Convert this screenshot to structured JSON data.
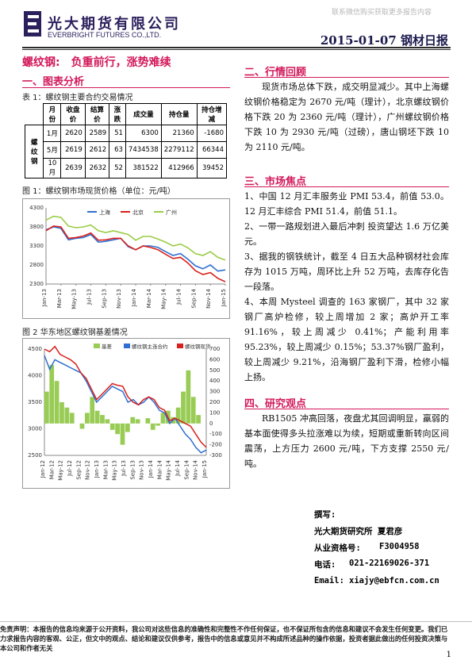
{
  "header": {
    "logo_cn": "光大期货有限公司",
    "logo_en": "EVERBRIGHT FUTURES CO.,LTD.",
    "watermark": "联系微信购买获取更多报告内容",
    "date_title": "2015-01-07 钢材日报"
  },
  "main_title": "螺纹钢:　负重前行，涨势难续",
  "section1": {
    "title": "一、图表分析",
    "table_caption": "表 1：螺纹钢主要合约交易情况",
    "table": {
      "headers": [
        "月份",
        "收盘价",
        "结算价",
        "涨跌",
        "成交量",
        "持仓量",
        "持仓增减"
      ],
      "row_label": "螺纹钢",
      "rows": [
        [
          "1月",
          "2620",
          "2589",
          "51",
          "6300",
          "21360",
          "-1680"
        ],
        [
          "5月",
          "2619",
          "2612",
          "63",
          "7434538",
          "2279112",
          "66344"
        ],
        [
          "10月",
          "2639",
          "2632",
          "52",
          "381522",
          "412966",
          "39452"
        ]
      ]
    },
    "fig1_caption": "图 1：螺纹钢市场现货价格（单位：元/吨）",
    "fig2_caption": "图 2  华东地区螺纹钢基差情况"
  },
  "section2": {
    "title": "二、行情回顾",
    "text": "现货市场总体下跌，成交明显减少。其中上海螺纹钢价格稳定为 2670 元/吨（理计），北京螺纹钢价格下跌 20 为 2360 元/吨（理计），广州螺纹钢价格下跌 10 为 2930 元/吨（过磅），唐山钢坯下跌 10 为 2110 元/吨。"
  },
  "section3": {
    "title": "三、市场焦点",
    "items": [
      "1、中国 12 月汇丰服务业 PMI 53.4，前值 53.0。12 月汇丰综合 PMI 51.4，前值 51.1。",
      "2、一带一路规划进入最后冲刺 投资望达 1.6 万亿美元。",
      "3、据我的钢铁统计，截至 4 日五大品种钢材社会库存为 1015 万吨，周环比上升 52 万吨，去库存化告一段落。",
      "4、本周 Mysteel 调查的 163 家钢厂，其中 32 家钢厂高炉检修，较上周增加 2 家；高炉开工率 91.16%，较上周减少 0.41%；产能利用率 95.23%，较上周减少 0.15%；53.37%钢厂盈利，较上周减少 9.21%，沿海钢厂盈利下滑，检修小幅上扬。"
    ]
  },
  "section4": {
    "title": "四、研究观点",
    "text": "RB1505 冲高回落，夜盘尤其回调明显，羸弱的基本面使得多头拉涨难以为续，短期或重新转向区间震荡，上方压力 2600 元/吨，下方支撑 2550 元/吨。"
  },
  "signature": {
    "label": "撰写:",
    "author": "光大期货研究所  夏君彦",
    "cert_label": "从业资格号:",
    "cert": "F3004958",
    "phone_label": "电话:",
    "phone": "021-22169026-371",
    "email_label": "Email:",
    "email": "xiajy@ebfcn.com.cn"
  },
  "disclaimer": "免责声明：本报告的信息均来源于公开资料，我公司对这些信息的准确性和完整性不作任何保证，也不保证所包含的信息和建议不会发生任何变更。我们已力求报告内容的客观、公正，但文中的观点、结论和建议仅供参考，报告中的信息或意见并不构成所述品种的操作依据，投资者据此做出的任何投资决策与本公司和作者无关",
  "page_number": "1",
  "colors": {
    "accent": "#d2185a",
    "navy": "#2b1f5c",
    "shanghai": "#2f6fd0",
    "beijing": "#d8201c",
    "guangzhou": "#9acc44",
    "basis": "#99cc55"
  },
  "chart_data": [
    {
      "type": "line",
      "title": "",
      "legend": [
        "上海",
        "北京",
        "广州"
      ],
      "legend_position": "top",
      "x_ticks": [
        "Jan-13",
        "Mar-13",
        "May-13",
        "Jul-13",
        "Sep-13",
        "Nov-13",
        "Jan-14",
        "Mar-14",
        "May-14",
        "Jul-14",
        "Sep-14",
        "Nov-14",
        "Jan-15"
      ],
      "ylim": [
        2300,
        4300
      ],
      "y_ticks": [
        2300,
        2800,
        3300,
        3800,
        4300
      ],
      "series": [
        {
          "name": "上海",
          "values": [
            3720,
            3800,
            3760,
            3460,
            3500,
            3520,
            3600,
            3400,
            3420,
            3460,
            3500,
            3280,
            3200,
            3300,
            3300,
            3260,
            3150,
            3050,
            3100,
            2950,
            2780,
            2700,
            2800,
            2640,
            2670
          ]
        },
        {
          "name": "北京",
          "values": [
            3700,
            3820,
            3800,
            3500,
            3520,
            3560,
            3640,
            3450,
            3460,
            3500,
            3500,
            3300,
            3200,
            3300,
            3260,
            3200,
            3080,
            2970,
            3000,
            2850,
            2650,
            2550,
            2600,
            2450,
            2360
          ]
        },
        {
          "name": "广州",
          "values": [
            3980,
            4080,
            4050,
            3820,
            3780,
            3800,
            3850,
            3700,
            3650,
            3700,
            3650,
            3600,
            3450,
            3550,
            3550,
            3480,
            3400,
            3300,
            3350,
            3250,
            3100,
            3050,
            3150,
            3000,
            2930
          ]
        }
      ]
    },
    {
      "type": "line",
      "title": "",
      "legend": [
        "基差",
        "螺纹钢主连合约",
        "螺纹钢现货"
      ],
      "legend_position": "top",
      "x_ticks": [
        "Jan-12",
        "Mar-12",
        "May-12",
        "Jul-12",
        "Sep-12",
        "Nov-12",
        "Jan-13",
        "Mar-13",
        "May-13",
        "Jul-13",
        "Sep-13",
        "Nov-13",
        "Jan-14",
        "Mar-14",
        "May-14",
        "Jul-14",
        "Sep-14",
        "Nov-14",
        "Jan-15"
      ],
      "ylim": [
        2500,
        4500
      ],
      "y2lim": [
        -300,
        700
      ],
      "y_ticks": [
        2500,
        3000,
        3500,
        4000,
        4500
      ],
      "y2_ticks": [
        -300,
        -200,
        -100,
        0,
        100,
        200,
        300,
        400,
        500,
        600,
        700
      ],
      "series": [
        {
          "name": "基差",
          "type": "bar",
          "axis": "right",
          "values": [
            300,
            550,
            400,
            200,
            150,
            100,
            0,
            -50,
            100,
            250,
            120,
            80,
            40,
            -60,
            -100,
            -200,
            -80,
            60,
            40,
            0,
            50,
            -60,
            -20,
            100,
            120,
            60,
            150,
            300,
            500,
            250,
            80,
            0
          ]
        },
        {
          "name": "螺纹钢主连合约",
          "axis": "left",
          "values": [
            4380,
            4120,
            4300,
            4250,
            4200,
            4150,
            4100,
            4050,
            3900,
            3700,
            3500,
            3600,
            3700,
            3800,
            3750,
            3700,
            3500,
            3550,
            3450,
            3500,
            3600,
            3500,
            3350,
            3300,
            3100,
            3200,
            3050,
            2900,
            2800,
            2650,
            2550,
            2600
          ]
        },
        {
          "name": "螺纹钢现货",
          "axis": "left",
          "values": [
            4500,
            4450,
            4550,
            4400,
            4350,
            4300,
            4220,
            4050,
            3950,
            3750,
            3550,
            3650,
            3750,
            3850,
            3820,
            3800,
            3600,
            3500,
            3450,
            3550,
            3600,
            3550,
            3400,
            3350,
            3150,
            3200,
            3150,
            3100,
            3050,
            2900,
            2750,
            2650
          ]
        }
      ]
    }
  ]
}
